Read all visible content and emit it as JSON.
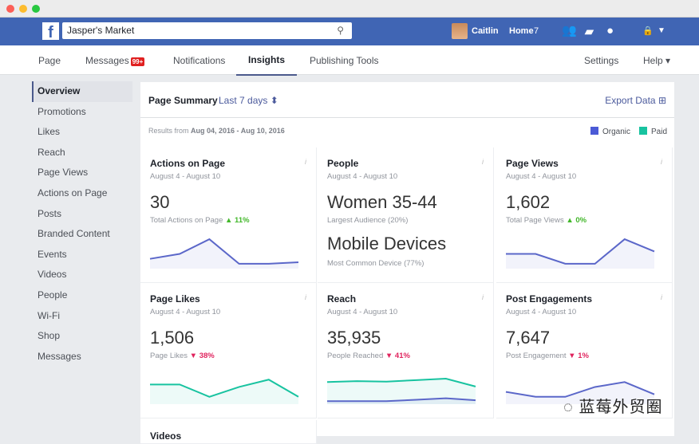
{
  "topbar": {
    "page_name": "Jasper's Market",
    "user": "Caitlin",
    "home": "Home",
    "home_count": "7"
  },
  "subnav": {
    "items": [
      "Page",
      "Messages",
      "Notifications",
      "Insights",
      "Publishing Tools"
    ],
    "messages_badge": "99+",
    "settings": "Settings",
    "help": "Help ▾"
  },
  "sidebar": {
    "items": [
      "Overview",
      "Promotions",
      "Likes",
      "Reach",
      "Page Views",
      "Actions on Page",
      "Posts",
      "Branded Content",
      "Events",
      "Videos",
      "People",
      "Wi-Fi",
      "Shop",
      "Messages"
    ]
  },
  "summary": {
    "title": "Page Summary",
    "range": "Last 7 days ⬍",
    "export": "Export Data",
    "results_prefix": "Results from ",
    "results_range": "Aug 04, 2016 - Aug 10, 2016"
  },
  "legend": {
    "organic": "Organic",
    "paid": "Paid",
    "organic_color": "#4b5ad6",
    "paid_color": "#18c3a0"
  },
  "cards": [
    {
      "title": "Actions on Page",
      "date": "August 4 - August 10",
      "value": "30",
      "sub": "Total Actions on Page",
      "change": "▲ 11%",
      "dir": "up",
      "organic": [
        2,
        3,
        6,
        1,
        1,
        1.3
      ]
    },
    {
      "title": "People",
      "date": "August 4 - August 10",
      "value": "Women 35-44",
      "sub": "Largest Audience (20%)",
      "value2": "Mobile Devices",
      "sub2": "Most Common Device (77%)"
    },
    {
      "title": "Page Views",
      "date": "August 4 - August 10",
      "value": "1,602",
      "sub": "Total Page Views",
      "change": "▲ 0%",
      "dir": "up",
      "organic": [
        3,
        3,
        1,
        1,
        6,
        3.5
      ]
    },
    {
      "title": "Page Likes",
      "date": "August 4 - August 10",
      "value": "1,506",
      "sub": "Page Likes",
      "change": "▼ 38%",
      "dir": "down",
      "paid": [
        4,
        4,
        1.5,
        3.5,
        5,
        1.5
      ]
    },
    {
      "title": "Reach",
      "date": "August 4 - August 10",
      "value": "35,935",
      "sub": "People Reached",
      "change": "▼ 41%",
      "dir": "down",
      "paid": [
        4.5,
        4.7,
        4.6,
        4.9,
        5.2,
        3.6
      ],
      "organic": [
        0.6,
        0.6,
        0.6,
        0.9,
        1.2,
        0.8
      ]
    },
    {
      "title": "Post Engagements",
      "date": "August 4 - August 10",
      "value": "7,647",
      "sub": "Post Engagement",
      "change": "▼ 1%",
      "dir": "down",
      "organic": [
        2.5,
        1.5,
        1.5,
        3.5,
        4.5,
        2
      ]
    }
  ],
  "partial_card_title": "Videos",
  "watermark": "蓝莓外贸圈"
}
